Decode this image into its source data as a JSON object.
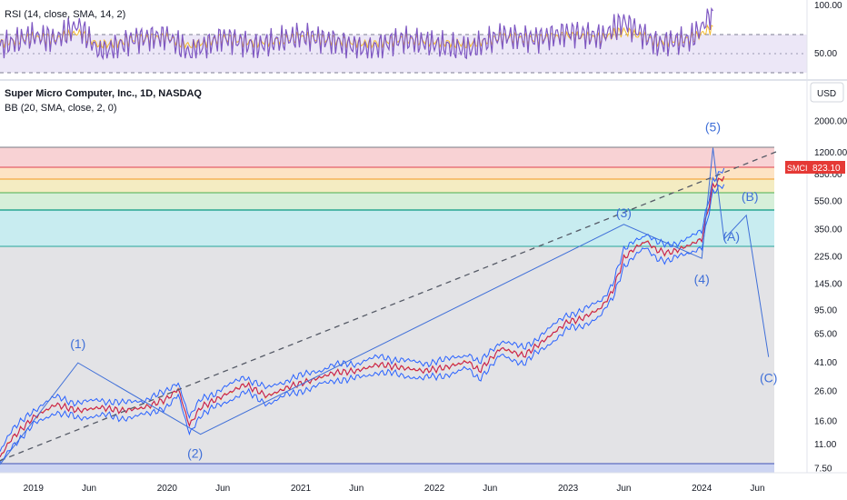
{
  "rsi": {
    "title": "RSI (14, close, SMA, 14, 2)",
    "levels": [
      100,
      70,
      50,
      30
    ],
    "tick_labels": [
      "100.00",
      "50.00"
    ],
    "ylim": [
      0,
      100
    ]
  },
  "main": {
    "title": "Super Micro Computer, Inc., 1D, NASDAQ",
    "indicator": "BB (20, SMA, close, 2, 0)",
    "currency": "USD",
    "price_tag": {
      "symbol": "SMCI",
      "value": "823.10",
      "price": 823.1
    },
    "y_tick_labels": [
      "2000.00",
      "1200.00",
      "850.00",
      "550.00",
      "350.00",
      "225.00",
      "145.00",
      "95.00",
      "65.00",
      "41.00",
      "26.00",
      "16.00",
      "11.00",
      "7.50"
    ],
    "x_tick_labels": [
      "2019",
      "Jun",
      "2020",
      "Jun",
      "2021",
      "Jun",
      "2022",
      "Jun",
      "2023",
      "Jun",
      "2024",
      "Jun"
    ]
  },
  "chart_data": [
    {
      "type": "line",
      "name": "RSI panel",
      "title": "RSI (14, close, SMA, 14, 2)",
      "ylim": [
        0,
        100
      ],
      "yticks": [
        100,
        50
      ],
      "bands": [
        70,
        50,
        30
      ],
      "rsi_x": [
        "2018-10",
        "2019-01",
        "2019-03",
        "2019-05",
        "2019-07",
        "2019-10",
        "2020-01",
        "2020-03",
        "2020-06",
        "2020-09",
        "2021-01",
        "2021-04",
        "2021-07",
        "2021-10",
        "2022-01",
        "2022-04",
        "2022-07",
        "2022-10",
        "2023-01",
        "2023-04",
        "2023-06",
        "2023-09",
        "2023-12",
        "2024-01",
        "2024-02"
      ],
      "rsi_y": [
        45,
        60,
        55,
        75,
        35,
        55,
        60,
        35,
        58,
        45,
        60,
        52,
        40,
        55,
        48,
        40,
        60,
        55,
        65,
        58,
        80,
        48,
        55,
        72,
        95
      ]
    },
    {
      "type": "line",
      "title": "Super Micro Computer, Inc., 1D, NASDAQ",
      "scale": "log",
      "ylim": [
        7,
        2500
      ],
      "yticks": [
        2000,
        1200,
        850,
        550,
        350,
        225,
        145,
        95,
        65,
        41,
        26,
        16,
        11,
        7.5
      ],
      "xrange": [
        "2018-10",
        "2024-08"
      ],
      "series": [
        {
          "x": [
            "2018-10",
            "2018-11",
            "2019-01",
            "2019-03",
            "2019-05",
            "2019-07",
            "2019-09",
            "2019-11",
            "2020-01",
            "2020-02",
            "2020-03",
            "2020-04",
            "2020-06",
            "2020-08",
            "2020-10",
            "2020-12",
            "2021-02",
            "2021-04",
            "2021-06",
            "2021-08",
            "2021-10",
            "2021-12",
            "2022-02",
            "2022-04",
            "2022-05",
            "2022-07",
            "2022-09",
            "2022-11",
            "2023-01",
            "2023-02",
            "2023-03",
            "2023-04",
            "2023-05",
            "2023-06",
            "2023-07",
            "2023-08",
            "2023-09",
            "2023-10",
            "2023-11",
            "2023-12",
            "2024-01",
            "2024-02",
            "2024-03"
          ],
          "y": [
            9,
            12,
            17,
            21,
            19,
            20,
            19,
            20,
            23,
            27,
            15,
            20,
            24,
            29,
            24,
            28,
            31,
            35,
            36,
            40,
            38,
            36,
            38,
            42,
            36,
            52,
            46,
            60,
            80,
            82,
            90,
            100,
            130,
            220,
            260,
            290,
            250,
            240,
            255,
            275,
            300,
            700,
            823.1
          ]
        }
      ],
      "fib_levels": [
        1200,
        850,
        700,
        550,
        420,
        240
      ],
      "wave_labels": [
        "(1)",
        "(2)",
        "(3)",
        "(4)",
        "(5)",
        "(A)",
        "(B)",
        "(C)"
      ],
      "wave_points": [
        {
          "label": "(1)",
          "x": "2019-05",
          "y": 41
        },
        {
          "label": "(2)",
          "x": "2020-04",
          "y": 13
        },
        {
          "label": "(3)",
          "x": "2023-06",
          "y": 380
        },
        {
          "label": "(4)",
          "x": "2024-01",
          "y": 220
        },
        {
          "label": "(5)",
          "x": "2024-02",
          "y": 1300
        },
        {
          "label": "(A)",
          "x": "2024-03",
          "y": 300
        },
        {
          "label": "(B)",
          "x": "2024-05",
          "y": 440
        },
        {
          "label": "(C)",
          "x": "2024-07",
          "y": 45
        }
      ],
      "trendline": {
        "from": {
          "x": "2018-10",
          "y": 8.5
        },
        "to": {
          "x": "2024-08",
          "y": 1250
        },
        "style": "dashed"
      },
      "last_price": 823.1
    }
  ]
}
